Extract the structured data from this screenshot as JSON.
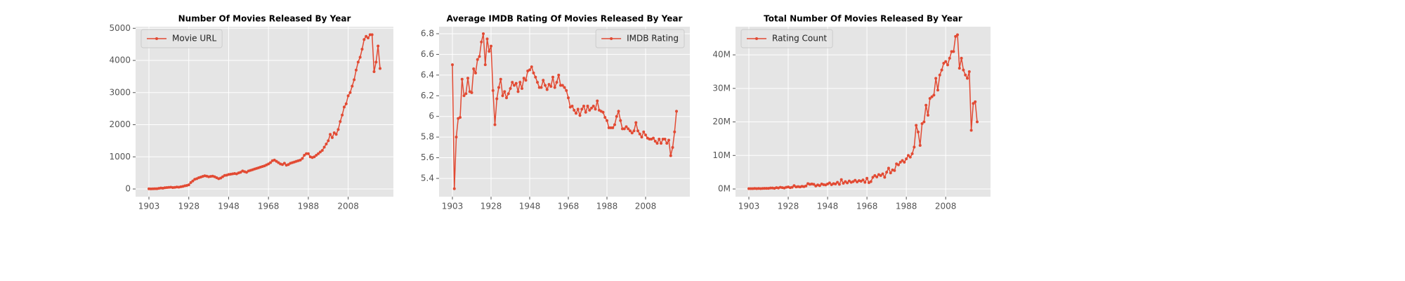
{
  "chart_data": [
    {
      "type": "line",
      "title": "Number Of Movies Released By Year",
      "categories": [
        "1903",
        null,
        null,
        null,
        null,
        null,
        null,
        null,
        null,
        null,
        null,
        null,
        null,
        null,
        null,
        null,
        null,
        null,
        null,
        null,
        "1928",
        null,
        null,
        null,
        null,
        null,
        null,
        null,
        null,
        null,
        null,
        null,
        null,
        null,
        null,
        null,
        null,
        null,
        null,
        null,
        "1948",
        null,
        null,
        null,
        null,
        null,
        null,
        null,
        null,
        null,
        null,
        null,
        null,
        null,
        null,
        null,
        null,
        null,
        null,
        null,
        "1968",
        null,
        null,
        null,
        null,
        null,
        null,
        null,
        null,
        null,
        null,
        null,
        null,
        null,
        null,
        null,
        null,
        null,
        null,
        null,
        "1988",
        null,
        null,
        null,
        null,
        null,
        null,
        null,
        null,
        null,
        null,
        null,
        null,
        null,
        null,
        null,
        null,
        null,
        null,
        null,
        "2008",
        null,
        null,
        null,
        null,
        null,
        null,
        null,
        null,
        null,
        null,
        null,
        null,
        null,
        null,
        null,
        null
      ],
      "series": [
        {
          "name": "Movie URL",
          "color": "#e24a33",
          "values": [
            5,
            3,
            5,
            8,
            10,
            20,
            30,
            25,
            40,
            45,
            50,
            55,
            45,
            50,
            60,
            55,
            70,
            80,
            100,
            110,
            130,
            200,
            250,
            300,
            320,
            350,
            370,
            390,
            410,
            400,
            380,
            390,
            400,
            380,
            350,
            320,
            340,
            380,
            420,
            430,
            450,
            460,
            470,
            480,
            470,
            500,
            520,
            560,
            540,
            520,
            560,
            580,
            600,
            620,
            640,
            660,
            680,
            700,
            720,
            750,
            780,
            820,
            880,
            900,
            860,
            820,
            780,
            760,
            800,
            740,
            760,
            800,
            820,
            840,
            860,
            880,
            900,
            950,
            1050,
            1100,
            1100,
            1000,
            980,
            1000,
            1050,
            1100,
            1150,
            1200,
            1300,
            1400,
            1500,
            1700,
            1600,
            1750,
            1700,
            1850,
            2100,
            2300,
            2550,
            2650,
            2900,
            3000,
            3200,
            3400,
            3700,
            3950,
            4100,
            4350,
            4650,
            4750,
            4700,
            4800,
            4800,
            3650,
            3950,
            4450,
            3750
          ]
        }
      ],
      "ylim": [
        -240,
        5050
      ],
      "yticks": [
        0,
        1000,
        2000,
        3000,
        4000,
        5000
      ],
      "grid": true,
      "legend": "upper left"
    },
    {
      "type": "line",
      "title": "Average IMDB Rating Of Movies Released By Year",
      "categories": [
        "1903",
        null,
        null,
        null,
        null,
        null,
        null,
        null,
        null,
        null,
        null,
        null,
        null,
        null,
        null,
        null,
        null,
        null,
        null,
        null,
        "1928",
        null,
        null,
        null,
        null,
        null,
        null,
        null,
        null,
        null,
        null,
        null,
        null,
        null,
        null,
        null,
        null,
        null,
        null,
        null,
        "1948",
        null,
        null,
        null,
        null,
        null,
        null,
        null,
        null,
        null,
        null,
        null,
        null,
        null,
        null,
        null,
        null,
        null,
        null,
        null,
        "1968",
        null,
        null,
        null,
        null,
        null,
        null,
        null,
        null,
        null,
        null,
        null,
        null,
        null,
        null,
        null,
        null,
        null,
        null,
        null,
        "1988",
        null,
        null,
        null,
        null,
        null,
        null,
        null,
        null,
        null,
        null,
        null,
        null,
        null,
        null,
        null,
        null,
        null,
        null,
        null,
        "2008",
        null,
        null,
        null,
        null,
        null,
        null,
        null,
        null,
        null,
        null,
        null,
        null,
        null,
        null,
        null,
        null
      ],
      "series": [
        {
          "name": "IMDB Rating",
          "color": "#e24a33",
          "values": [
            6.5,
            5.3,
            5.8,
            5.98,
            5.99,
            6.36,
            6.2,
            6.22,
            6.37,
            6.24,
            6.23,
            6.46,
            6.42,
            6.55,
            6.58,
            6.72,
            6.8,
            6.5,
            6.75,
            6.63,
            6.68,
            6.25,
            5.92,
            6.17,
            6.28,
            6.36,
            6.2,
            6.24,
            6.18,
            6.22,
            6.27,
            6.33,
            6.3,
            6.32,
            6.24,
            6.33,
            6.27,
            6.37,
            6.35,
            6.44,
            6.45,
            6.48,
            6.42,
            6.38,
            6.33,
            6.28,
            6.28,
            6.35,
            6.3,
            6.26,
            6.31,
            6.29,
            6.38,
            6.28,
            6.33,
            6.4,
            6.3,
            6.3,
            6.28,
            6.25,
            6.18,
            6.09,
            6.1,
            6.06,
            6.03,
            6.07,
            6.01,
            6.07,
            6.1,
            6.04,
            6.1,
            6.06,
            6.08,
            6.1,
            6.07,
            6.15,
            6.06,
            6.05,
            6.04,
            5.99,
            5.96,
            5.89,
            5.89,
            5.89,
            5.92,
            6.0,
            6.05,
            5.96,
            5.88,
            5.88,
            5.9,
            5.88,
            5.86,
            5.84,
            5.86,
            5.94,
            5.86,
            5.83,
            5.8,
            5.85,
            5.82,
            5.79,
            5.78,
            5.78,
            5.79,
            5.76,
            5.74,
            5.78,
            5.74,
            5.78,
            5.78,
            5.74,
            5.77,
            5.62,
            5.7,
            5.85,
            6.05
          ]
        }
      ],
      "ylim": [
        5.223,
        6.868
      ],
      "yticks": [
        5.4,
        5.6,
        5.8,
        6.0,
        6.2,
        6.4,
        6.6,
        6.8
      ],
      "grid": true,
      "legend": "upper right"
    },
    {
      "type": "line",
      "title": "Total Number Of Movies Released By Year",
      "categories": [
        "1903",
        null,
        null,
        null,
        null,
        null,
        null,
        null,
        null,
        null,
        null,
        null,
        null,
        null,
        null,
        null,
        null,
        null,
        null,
        null,
        "1928",
        null,
        null,
        null,
        null,
        null,
        null,
        null,
        null,
        null,
        null,
        null,
        null,
        null,
        null,
        null,
        null,
        null,
        null,
        null,
        "1948",
        null,
        null,
        null,
        null,
        null,
        null,
        null,
        null,
        null,
        null,
        null,
        null,
        null,
        null,
        null,
        null,
        null,
        null,
        null,
        "1968",
        null,
        null,
        null,
        null,
        null,
        null,
        null,
        null,
        null,
        null,
        null,
        null,
        null,
        null,
        null,
        null,
        null,
        null,
        null,
        "1988",
        null,
        null,
        null,
        null,
        null,
        null,
        null,
        null,
        null,
        null,
        null,
        null,
        null,
        null,
        null,
        null,
        null,
        null,
        null,
        "2008",
        null,
        null,
        null,
        null,
        null,
        null,
        null,
        null,
        null,
        null,
        null,
        null,
        null,
        null,
        null,
        null
      ],
      "series": [
        {
          "name": "Rating Count",
          "color": "#e24a33",
          "values": [
            100000,
            100000,
            100000,
            150000,
            100000,
            150000,
            100000,
            150000,
            200000,
            200000,
            200000,
            300000,
            300000,
            200000,
            400000,
            300000,
            500000,
            400000,
            300000,
            500000,
            600000,
            400000,
            500000,
            1000000,
            600000,
            700000,
            600000,
            800000,
            700000,
            900000,
            1600000,
            1400000,
            1500000,
            1400000,
            900000,
            1200000,
            1000000,
            1500000,
            1300000,
            1200000,
            1500000,
            1800000,
            1300000,
            1600000,
            1500000,
            2000000,
            1400000,
            2800000,
            1700000,
            2200000,
            1800000,
            2400000,
            2000000,
            2200000,
            2600000,
            2100000,
            2500000,
            2300000,
            2700000,
            2000000,
            3200000,
            1900000,
            2200000,
            3500000,
            4000000,
            3600000,
            4300000,
            4000000,
            4500000,
            3500000,
            5000000,
            6200000,
            4800000,
            5700000,
            5500000,
            7500000,
            7200000,
            8000000,
            8500000,
            8000000,
            9000000,
            10000000,
            9500000,
            10500000,
            12500000,
            19000000,
            17000000,
            13000000,
            19500000,
            20000000,
            25000000,
            22000000,
            27000000,
            27500000,
            28000000,
            33000000,
            29500000,
            34000000,
            35500000,
            37500000,
            38000000,
            37000000,
            39000000,
            41000000,
            41000000,
            45500000,
            46000000,
            36000000,
            39000000,
            35500000,
            34000000,
            33000000,
            35000000,
            17500000,
            25500000,
            26000000,
            20000000
          ]
        }
      ],
      "ylim": [
        -2300000,
        48400000
      ],
      "yticks": [
        {
          "value": 0,
          "label": "0M"
        },
        {
          "value": 10000000,
          "label": "10M"
        },
        {
          "value": 20000000,
          "label": "20M"
        },
        {
          "value": 30000000,
          "label": "30M"
        },
        {
          "value": 40000000,
          "label": "40M"
        }
      ],
      "grid": true,
      "legend": "upper left"
    }
  ]
}
